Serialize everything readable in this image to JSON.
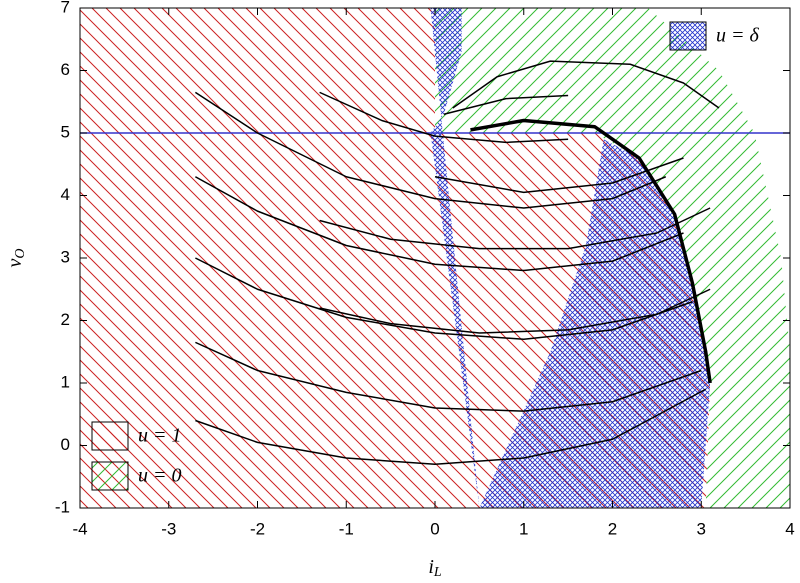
{
  "chart_data": {
    "type": "phase",
    "xlabel": "i",
    "xlabel_sub": "L",
    "ylabel": "v",
    "ylabel_sub": "O",
    "xlim": [
      -4,
      4
    ],
    "ylim": [
      -1,
      7
    ],
    "xticks": [
      -4,
      -3,
      -2,
      -1,
      0,
      1,
      2,
      3,
      4
    ],
    "yticks": [
      -1,
      0,
      1,
      2,
      3,
      4,
      5,
      6,
      7
    ],
    "regions": [
      {
        "name": "u = 1",
        "color": "#cc2222",
        "hatch": "\\",
        "legend": "bottom left",
        "x": [
          -4,
          0,
          0,
          1.8,
          2.3,
          2.7,
          2.9,
          3.1,
          3.05,
          -4
        ],
        "y": [
          7,
          7,
          5,
          5,
          4.6,
          3.7,
          2.6,
          1,
          -1,
          -1
        ]
      },
      {
        "name": "u = 0",
        "color": "#33bb33",
        "hatch": "/",
        "legend": "bottom left",
        "x": [
          0,
          2.4,
          3.2,
          3.6,
          3.9,
          4,
          4,
          3.05,
          3.1,
          2.9,
          2.7,
          2.3,
          1.8,
          0
        ],
        "y": [
          7,
          7,
          6,
          5,
          3,
          1.5,
          -1,
          -1,
          1,
          2.6,
          3.7,
          4.6,
          5,
          5
        ]
      },
      {
        "name": "u = δ",
        "color": "#2233cc",
        "hatch": "x",
        "legend": "top right",
        "x": [
          -0.05,
          0.3,
          0.3,
          0.1,
          -0.05,
          0.5,
          3.0,
          3.1,
          2.9,
          2.7,
          2.3,
          1.9,
          1.7,
          1.3,
          0.5
        ],
        "y": [
          7,
          7,
          6.3,
          5.3,
          5.0,
          -1,
          -1,
          1,
          2.6,
          3.7,
          4.6,
          4.9,
          3.2,
          1.5,
          -1
        ]
      }
    ],
    "hlines": [
      {
        "y": 5,
        "color": "#3333cc"
      }
    ],
    "series": [
      {
        "color": "#000000",
        "width": 1.5,
        "x": [
          -2.7,
          -2,
          -1,
          0,
          1,
          2,
          2.6
        ],
        "y": [
          5.65,
          5.0,
          4.3,
          3.95,
          3.8,
          3.95,
          4.3
        ]
      },
      {
        "color": "#000000",
        "width": 1.5,
        "x": [
          -2.7,
          -2,
          -1,
          0,
          1,
          2,
          2.8
        ],
        "y": [
          4.3,
          3.75,
          3.2,
          2.9,
          2.8,
          2.95,
          3.4
        ]
      },
      {
        "color": "#000000",
        "width": 1.5,
        "x": [
          -2.7,
          -2,
          -1,
          0,
          1,
          2,
          2.9
        ],
        "y": [
          3.0,
          2.5,
          2.05,
          1.8,
          1.7,
          1.85,
          2.3
        ]
      },
      {
        "color": "#000000",
        "width": 1.5,
        "x": [
          -2.7,
          -2,
          -1,
          0,
          1,
          2,
          3.0
        ],
        "y": [
          1.65,
          1.2,
          0.85,
          0.6,
          0.55,
          0.7,
          1.2
        ]
      },
      {
        "color": "#000000",
        "width": 1.5,
        "x": [
          -2.7,
          -2,
          -1,
          0,
          1,
          2,
          3.05
        ],
        "y": [
          0.4,
          0.05,
          -0.2,
          -0.3,
          -0.2,
          0.1,
          0.9
        ]
      },
      {
        "color": "#000000",
        "width": 1.5,
        "x": [
          -1.3,
          -0.6,
          0,
          0.8,
          1.5
        ],
        "y": [
          5.65,
          5.2,
          4.95,
          4.85,
          4.9
        ]
      },
      {
        "color": "#000000",
        "width": 1.5,
        "x": [
          -1.3,
          -0.5,
          0.5,
          1.5,
          2.5,
          3.1
        ],
        "y": [
          3.6,
          3.3,
          3.15,
          3.15,
          3.4,
          3.8
        ]
      },
      {
        "color": "#000000",
        "width": 1.5,
        "x": [
          -1.3,
          -0.5,
          0.5,
          1.5,
          2.5,
          3.1
        ],
        "y": [
          2.2,
          1.95,
          1.8,
          1.85,
          2.1,
          2.5
        ]
      },
      {
        "color": "#000000",
        "width": 1.5,
        "x": [
          0,
          1,
          2,
          2.8
        ],
        "y": [
          4.3,
          4.05,
          4.2,
          4.6
        ]
      },
      {
        "color": "#000000",
        "width": 1.5,
        "x": [
          0.2,
          0.7,
          1.3,
          2.2,
          2.8,
          3.2
        ],
        "y": [
          5.4,
          5.9,
          6.15,
          6.1,
          5.8,
          5.4
        ]
      },
      {
        "color": "#000000",
        "width": 1.5,
        "x": [
          0.1,
          0.8,
          1.5
        ],
        "y": [
          5.3,
          5.55,
          5.6
        ]
      },
      {
        "color": "#000000",
        "width": 3.5,
        "x": [
          0.4,
          1,
          1.8,
          2.3,
          2.7,
          2.9,
          3.05,
          3.1
        ],
        "y": [
          5.05,
          5.2,
          5.1,
          4.6,
          3.7,
          2.6,
          1.5,
          1.0
        ]
      }
    ]
  }
}
